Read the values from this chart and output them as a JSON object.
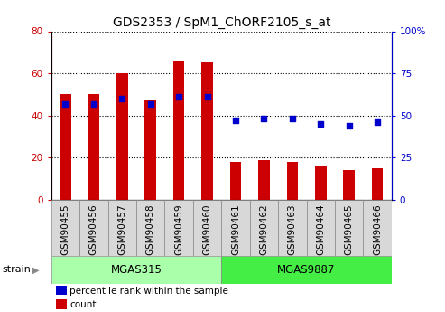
{
  "title": "GDS2353 / SpM1_ChORF2105_s_at",
  "samples": [
    "GSM90455",
    "GSM90456",
    "GSM90457",
    "GSM90458",
    "GSM90459",
    "GSM90460",
    "GSM90461",
    "GSM90462",
    "GSM90463",
    "GSM90464",
    "GSM90465",
    "GSM90466"
  ],
  "counts": [
    50,
    50,
    60,
    47,
    66,
    65,
    18,
    19,
    18,
    16,
    14,
    15
  ],
  "percentiles": [
    57,
    57,
    60,
    57,
    61,
    61,
    47,
    48,
    48,
    45,
    44,
    46
  ],
  "groups": [
    {
      "label": "MGAS315",
      "start": 0,
      "end": 6,
      "color": "#aaffaa"
    },
    {
      "label": "MGAS9887",
      "start": 6,
      "end": 12,
      "color": "#44ee44"
    }
  ],
  "bar_color": "#CC0000",
  "dot_color": "#0000CC",
  "left_axis_color": "#CC0000",
  "right_axis_color": "#0000CC",
  "left_ylim": [
    0,
    80
  ],
  "right_ylim": [
    0,
    100
  ],
  "left_yticks": [
    0,
    20,
    40,
    60,
    80
  ],
  "right_yticks": [
    0,
    25,
    50,
    75,
    100
  ],
  "right_yticklabels": [
    "0",
    "25",
    "50",
    "75",
    "100%"
  ],
  "dot_size": 22,
  "legend_items": [
    {
      "label": "count",
      "color": "#CC0000"
    },
    {
      "label": "percentile rank within the sample",
      "color": "#0000CC"
    }
  ],
  "strain_label": "strain",
  "bg_color": "#d8d8d8",
  "title_fontsize": 10,
  "tick_fontsize": 7.5
}
